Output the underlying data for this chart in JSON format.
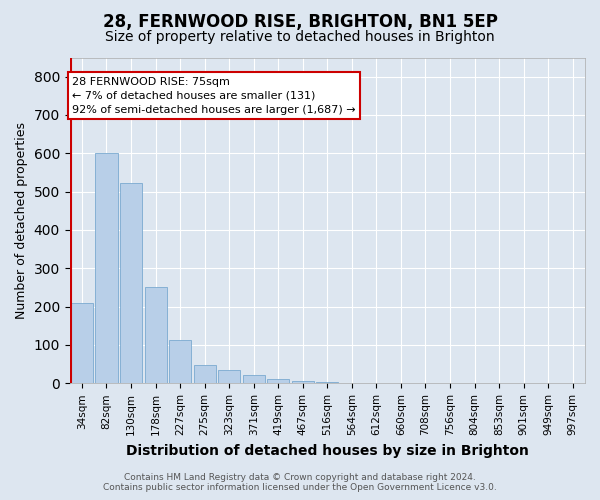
{
  "title": "28, FERNWOOD RISE, BRIGHTON, BN1 5EP",
  "subtitle": "Size of property relative to detached houses in Brighton",
  "xlabel": "Distribution of detached houses by size in Brighton",
  "ylabel": "Number of detached properties",
  "footer_line1": "Contains HM Land Registry data © Crown copyright and database right 2024.",
  "footer_line2": "Contains public sector information licensed under the Open Government Licence v3.0.",
  "categories": [
    "34sqm",
    "82sqm",
    "130sqm",
    "178sqm",
    "227sqm",
    "275sqm",
    "323sqm",
    "371sqm",
    "419sqm",
    "467sqm",
    "516sqm",
    "564sqm",
    "612sqm",
    "660sqm",
    "708sqm",
    "756sqm",
    "804sqm",
    "853sqm",
    "901sqm",
    "949sqm",
    "997sqm"
  ],
  "values": [
    210,
    600,
    523,
    252,
    113,
    48,
    34,
    21,
    10,
    5,
    3,
    2,
    0,
    0,
    1,
    0,
    0,
    0,
    0,
    0,
    0
  ],
  "bar_color": "#b8cfe8",
  "bar_edge_color": "#7aaad0",
  "highlight_color": "#cc0000",
  "annotation_line1": "28 FERNWOOD RISE: 75sqm",
  "annotation_line2": "← 7% of detached houses are smaller (131)",
  "annotation_line3": "92% of semi-detached houses are larger (1,687) →",
  "annotation_box_color": "#ffffff",
  "annotation_box_edge": "#cc0000",
  "ylim": [
    0,
    850
  ],
  "yticks": [
    0,
    100,
    200,
    300,
    400,
    500,
    600,
    700,
    800
  ],
  "background_color": "#dde6f0",
  "plot_background": "#dde6f0",
  "grid_color": "#ffffff",
  "title_fontsize": 12,
  "subtitle_fontsize": 10,
  "ylabel_fontsize": 9,
  "xlabel_fontsize": 10,
  "tick_fontsize": 7.5,
  "footer_fontsize": 6.5
}
